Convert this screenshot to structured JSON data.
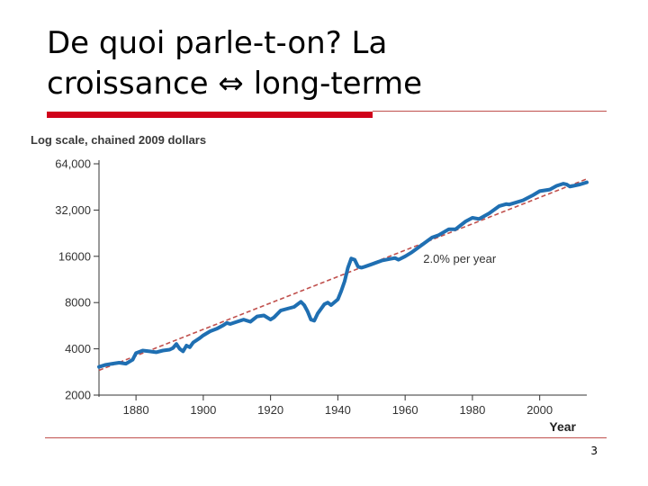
{
  "slide": {
    "title_line1": "De quoi parle-t-on? La",
    "title_line2": "croissance ⇔ long-terme",
    "page_number": "3"
  },
  "colors": {
    "accent_red": "#d0021b",
    "series_blue": "#1f6fb2",
    "trend_red": "#c0504d"
  },
  "chart_data": {
    "type": "line",
    "title": "Log scale, chained 2009 dollars",
    "xlabel": "Year",
    "ylabel": "",
    "yscale": "log",
    "xlim": [
      1869,
      2014
    ],
    "ylim": [
      2000,
      64000
    ],
    "x_ticks": [
      1880,
      1900,
      1920,
      1940,
      1960,
      1980,
      2000
    ],
    "x_tick_labels": [
      "1880",
      "1900",
      "1920",
      "1940",
      "1960",
      "1980",
      "2000"
    ],
    "y_ticks": [
      2000,
      4000,
      8000,
      16000,
      32000,
      64000
    ],
    "y_tick_labels": [
      "2000",
      "4000",
      "8000",
      "16000",
      "32,000",
      "64,000"
    ],
    "annotations": [
      {
        "text": "2.0% per year",
        "x": 1990,
        "y": 15500
      }
    ],
    "series": [
      {
        "x": [
          1869,
          1871,
          1873,
          1875,
          1877,
          1879,
          1880,
          1882,
          1884,
          1886,
          1888,
          1890,
          1891,
          1892,
          1893,
          1894,
          1895,
          1896,
          1897,
          1899,
          1900,
          1902,
          1904,
          1906,
          1907,
          1908,
          1910,
          1912,
          1914,
          1916,
          1918,
          1920,
          1921,
          1923,
          1925,
          1927,
          1929,
          1930,
          1931,
          1932,
          1933,
          1934,
          1936,
          1937,
          1938,
          1940,
          1941,
          1942,
          1943,
          1944,
          1945,
          1946,
          1947,
          1948,
          1950,
          1953,
          1955,
          1957,
          1958,
          1960,
          1962,
          1965,
          1968,
          1970,
          1973,
          1975,
          1978,
          1980,
          1982,
          1985,
          1988,
          1990,
          1991,
          1995,
          1998,
          2000,
          2003,
          2005,
          2007,
          2008,
          2009,
          2010,
          2012,
          2014
        ],
        "y": [
          3050,
          3150,
          3200,
          3250,
          3200,
          3400,
          3750,
          3900,
          3850,
          3800,
          3900,
          3950,
          4050,
          4300,
          4000,
          3850,
          4200,
          4100,
          4400,
          4700,
          4900,
          5200,
          5400,
          5700,
          5900,
          5800,
          6000,
          6200,
          6000,
          6500,
          6600,
          6200,
          6400,
          7100,
          7300,
          7500,
          8100,
          7700,
          7000,
          6200,
          6100,
          6800,
          7800,
          8000,
          7700,
          8400,
          9500,
          11000,
          13500,
          15500,
          15200,
          13700,
          13500,
          13700,
          14200,
          15000,
          15300,
          15600,
          15200,
          16000,
          17000,
          19000,
          21200,
          22000,
          24000,
          24000,
          27000,
          28500,
          28000,
          30500,
          34000,
          35000,
          34800,
          37000,
          40000,
          42500,
          43500,
          46000,
          47500,
          47000,
          45500,
          46000,
          47000,
          48500
        ]
      }
    ],
    "trend": {
      "name": "2.0% per year",
      "x": [
        1869,
        2014
      ],
      "y": [
        2900,
        51000
      ]
    }
  }
}
